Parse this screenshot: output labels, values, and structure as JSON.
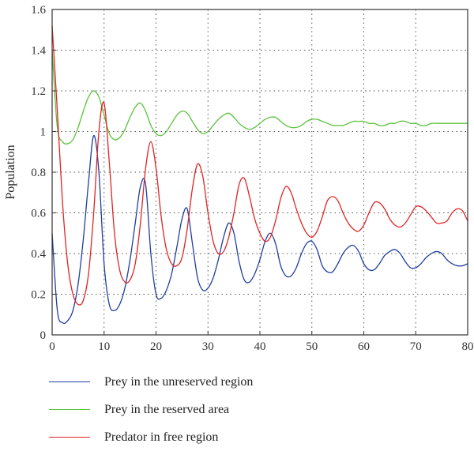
{
  "chart_data": {
    "type": "line",
    "title": "",
    "xlabel": "",
    "ylabel": "Population",
    "xlim": [
      0,
      80
    ],
    "ylim": [
      0,
      1.6
    ],
    "xticks": [
      "0",
      "10",
      "20",
      "30",
      "40",
      "50",
      "60",
      "70",
      "80"
    ],
    "yticks": [
      "0",
      "0.2",
      "0.4",
      "0.6",
      "0.8",
      "1",
      "1.2",
      "1.4",
      "1.6"
    ],
    "grid": "dotted",
    "legend_position": "bottom",
    "series": [
      {
        "name": "Prey in the unreserved region",
        "color": "#1f3f9f",
        "x": [
          0,
          1,
          2,
          3,
          4,
          5,
          6,
          7,
          8,
          9,
          10,
          11,
          12,
          13,
          14,
          15,
          16,
          17,
          18,
          19,
          20,
          21,
          22,
          23,
          24,
          25,
          26,
          27,
          28,
          29,
          30,
          31,
          32,
          33,
          34,
          35,
          36,
          37,
          38,
          39,
          40,
          41,
          42,
          43,
          44,
          45,
          46,
          47,
          48,
          49,
          50,
          51,
          52,
          53,
          54,
          55,
          56,
          57,
          58,
          59,
          60,
          61,
          62,
          63,
          64,
          65,
          66,
          67,
          68,
          69,
          70,
          71,
          72,
          73,
          74,
          75,
          76,
          77,
          78,
          79,
          80
        ],
        "y": [
          0.5,
          0.12,
          0.06,
          0.07,
          0.12,
          0.25,
          0.47,
          0.75,
          0.98,
          0.8,
          0.35,
          0.15,
          0.12,
          0.15,
          0.23,
          0.37,
          0.55,
          0.73,
          0.74,
          0.4,
          0.2,
          0.18,
          0.22,
          0.3,
          0.43,
          0.57,
          0.62,
          0.45,
          0.28,
          0.22,
          0.23,
          0.28,
          0.37,
          0.48,
          0.55,
          0.5,
          0.36,
          0.27,
          0.26,
          0.3,
          0.37,
          0.46,
          0.5,
          0.45,
          0.34,
          0.29,
          0.29,
          0.33,
          0.4,
          0.45,
          0.46,
          0.42,
          0.34,
          0.31,
          0.31,
          0.35,
          0.4,
          0.43,
          0.44,
          0.41,
          0.35,
          0.32,
          0.32,
          0.35,
          0.39,
          0.41,
          0.42,
          0.4,
          0.36,
          0.33,
          0.33,
          0.35,
          0.38,
          0.4,
          0.41,
          0.4,
          0.37,
          0.35,
          0.34,
          0.34,
          0.35
        ]
      },
      {
        "name": "Prey in the reserved area",
        "color": "#5ac23c",
        "x": [
          0,
          1,
          2,
          3,
          4,
          5,
          6,
          7,
          8,
          9,
          10,
          11,
          12,
          13,
          14,
          15,
          16,
          17,
          18,
          19,
          20,
          21,
          22,
          23,
          24,
          25,
          26,
          27,
          28,
          29,
          30,
          31,
          32,
          33,
          34,
          35,
          36,
          37,
          38,
          39,
          40,
          41,
          42,
          43,
          44,
          45,
          46,
          47,
          48,
          49,
          50,
          51,
          52,
          53,
          54,
          55,
          56,
          57,
          58,
          59,
          60,
          61,
          62,
          63,
          64,
          65,
          66,
          67,
          68,
          69,
          70,
          71,
          72,
          73,
          74,
          75,
          76,
          77,
          78,
          79,
          80
        ],
        "y": [
          1.4,
          1.02,
          0.95,
          0.94,
          0.96,
          1.02,
          1.1,
          1.17,
          1.2,
          1.17,
          1.08,
          0.99,
          0.96,
          0.97,
          1.01,
          1.07,
          1.12,
          1.14,
          1.1,
          1.03,
          0.99,
          0.98,
          1.0,
          1.04,
          1.08,
          1.1,
          1.09,
          1.05,
          1.01,
          0.99,
          1.0,
          1.03,
          1.06,
          1.08,
          1.09,
          1.07,
          1.04,
          1.02,
          1.01,
          1.02,
          1.04,
          1.06,
          1.07,
          1.07,
          1.05,
          1.03,
          1.02,
          1.02,
          1.03,
          1.05,
          1.06,
          1.06,
          1.05,
          1.04,
          1.03,
          1.03,
          1.03,
          1.04,
          1.05,
          1.05,
          1.05,
          1.04,
          1.04,
          1.03,
          1.03,
          1.04,
          1.04,
          1.05,
          1.05,
          1.04,
          1.04,
          1.03,
          1.03,
          1.04,
          1.04,
          1.04,
          1.04,
          1.04,
          1.04,
          1.04,
          1.04
        ]
      },
      {
        "name": "Predator in free region",
        "color": "#e02424",
        "x": [
          0,
          1,
          2,
          3,
          4,
          5,
          6,
          7,
          8,
          9,
          10,
          11,
          12,
          13,
          14,
          15,
          16,
          17,
          18,
          19,
          20,
          21,
          22,
          23,
          24,
          25,
          26,
          27,
          28,
          29,
          30,
          31,
          32,
          33,
          34,
          35,
          36,
          37,
          38,
          39,
          40,
          41,
          42,
          43,
          44,
          45,
          46,
          47,
          48,
          49,
          50,
          51,
          52,
          53,
          54,
          55,
          56,
          57,
          58,
          59,
          60,
          61,
          62,
          63,
          64,
          65,
          66,
          67,
          68,
          69,
          70,
          71,
          72,
          73,
          74,
          75,
          76,
          77,
          78,
          79,
          80
        ],
        "y": [
          1.52,
          1.1,
          0.65,
          0.35,
          0.2,
          0.15,
          0.17,
          0.3,
          0.6,
          1.0,
          1.14,
          0.85,
          0.5,
          0.32,
          0.26,
          0.27,
          0.35,
          0.55,
          0.82,
          0.95,
          0.82,
          0.58,
          0.42,
          0.35,
          0.34,
          0.38,
          0.52,
          0.72,
          0.84,
          0.78,
          0.6,
          0.46,
          0.4,
          0.41,
          0.48,
          0.6,
          0.74,
          0.77,
          0.68,
          0.57,
          0.5,
          0.46,
          0.48,
          0.56,
          0.67,
          0.73,
          0.7,
          0.62,
          0.55,
          0.5,
          0.48,
          0.51,
          0.58,
          0.66,
          0.68,
          0.66,
          0.6,
          0.55,
          0.52,
          0.51,
          0.54,
          0.6,
          0.65,
          0.65,
          0.62,
          0.57,
          0.54,
          0.53,
          0.55,
          0.59,
          0.63,
          0.63,
          0.61,
          0.58,
          0.55,
          0.55,
          0.56,
          0.6,
          0.62,
          0.61,
          0.56
        ]
      }
    ]
  }
}
